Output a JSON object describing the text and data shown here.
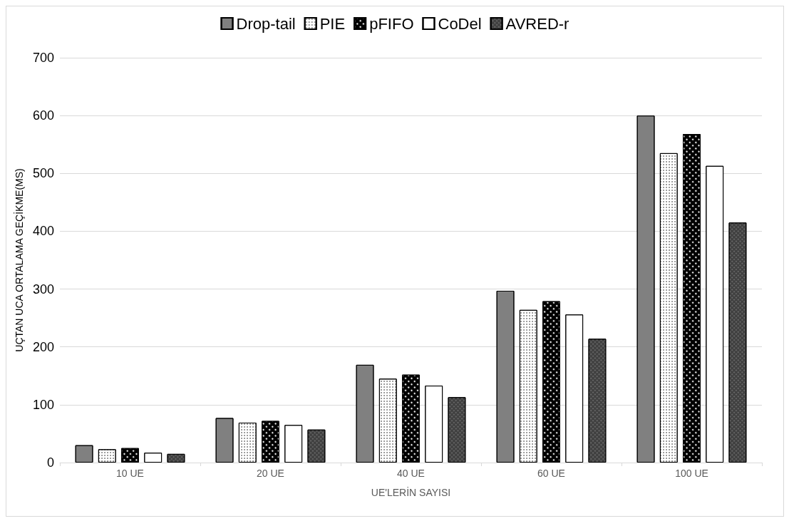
{
  "chart_data": {
    "type": "bar",
    "categories": [
      "10 UE",
      "20 UE",
      "40 UE",
      "60 UE",
      "100 UE"
    ],
    "series": [
      {
        "name": "Drop-tail",
        "color": "#808080",
        "values": [
          30,
          77,
          169,
          297,
          600
        ]
      },
      {
        "name": "PIE",
        "color": "#ffffff",
        "values": [
          23,
          69,
          145,
          264,
          535
        ]
      },
      {
        "name": "pFIFO",
        "color": "#000000",
        "values": [
          25,
          72,
          152,
          279,
          568
        ]
      },
      {
        "name": "CoDel",
        "color": "#ffffff",
        "values": [
          17,
          65,
          133,
          256,
          513
        ]
      },
      {
        "name": "AVRED-r",
        "color": "#404040",
        "values": [
          15,
          57,
          113,
          214,
          415
        ]
      }
    ],
    "xlabel": "UE'LERİN SAYISI",
    "ylabel": "UÇTAN UCA ORTALAMA GEÇİKME(MS)",
    "ylim": [
      0,
      700
    ],
    "yticks": [
      0,
      100,
      200,
      300,
      400,
      500,
      600,
      700
    ],
    "grid": "y",
    "legend": "top"
  }
}
